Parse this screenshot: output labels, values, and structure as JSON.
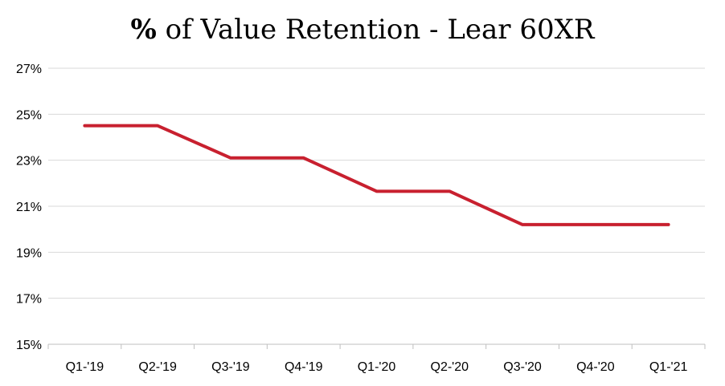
{
  "chart_data": {
    "type": "line",
    "title_prefix": "%",
    "title_rest": " of Value Retention - Lear 60XR",
    "xlabel": "",
    "ylabel": "",
    "categories": [
      "Q1-'19",
      "Q2-'19",
      "Q3-'19",
      "Q4-'19",
      "Q1-'20",
      "Q2-'20",
      "Q3-'20",
      "Q4-'20",
      "Q1-'21"
    ],
    "series": [
      {
        "values": [
          24.5,
          24.5,
          23.1,
          23.1,
          21.65,
          21.65,
          20.2,
          20.2,
          20.2
        ],
        "color": "#c8202f"
      }
    ],
    "y_ticks": [
      15,
      17,
      19,
      21,
      23,
      25,
      27
    ],
    "y_tick_labels": [
      "15%",
      "17%",
      "19%",
      "21%",
      "23%",
      "25%",
      "27%"
    ],
    "ylim": [
      15,
      27
    ],
    "grid": true,
    "legend": "none"
  }
}
